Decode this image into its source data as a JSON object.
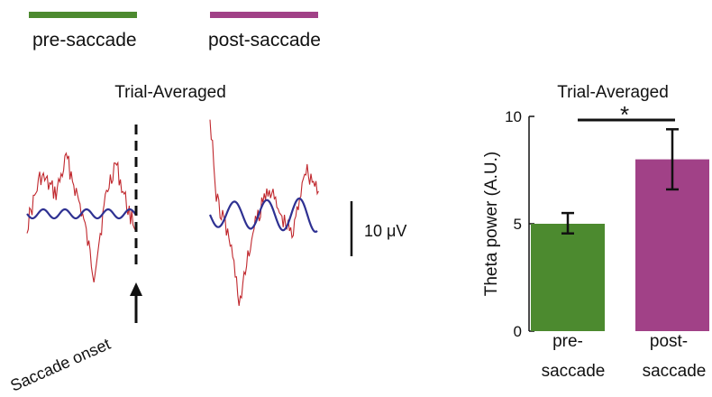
{
  "legend": {
    "pre": {
      "label": "pre-saccade",
      "color": "#4c8a2f"
    },
    "post": {
      "label": "post-saccade",
      "color": "#a14187"
    }
  },
  "traces_panel": {
    "title": "Trial-Averaged",
    "scale_bar_label": "10 μV",
    "annotation": "Saccade onset",
    "raw_color": "#c0272d",
    "theta_color": "#2e3192"
  },
  "chart_data": {
    "type": "bar",
    "title": "Trial-Averaged",
    "ylabel": "Theta power (A.U.)",
    "ylim": [
      0,
      10
    ],
    "yticks": [
      0,
      5,
      10
    ],
    "categories": [
      {
        "top": "pre-",
        "bottom": "saccade"
      },
      {
        "top": "post-",
        "bottom": "saccade"
      }
    ],
    "values": [
      5.0,
      8.0
    ],
    "error": [
      [
        4.55,
        5.5
      ],
      [
        6.6,
        9.4
      ]
    ],
    "colors": [
      "#4c8a2f",
      "#a14187"
    ],
    "significance": {
      "between": [
        0,
        1
      ],
      "label": "*"
    }
  }
}
